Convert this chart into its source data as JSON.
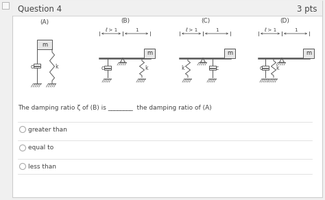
{
  "title": "Question 4",
  "pts": "3 pts",
  "bg_color": "#f0f0f0",
  "panel_bg": "#ffffff",
  "header_bg": "#f0f0f0",
  "border_color": "#cccccc",
  "text_color": "#444444",
  "label_color": "#444444",
  "question_text": "The damping ratio ζ of (B) is ________  the damping ratio of (A)",
  "options": [
    "greater than",
    "equal to",
    "less than"
  ],
  "labels": [
    "(A)",
    "(B)",
    "(C)",
    "(D)"
  ],
  "font_size_title": 8.5,
  "font_size_text": 6.5,
  "font_size_label": 6.5,
  "font_size_small": 5.5
}
